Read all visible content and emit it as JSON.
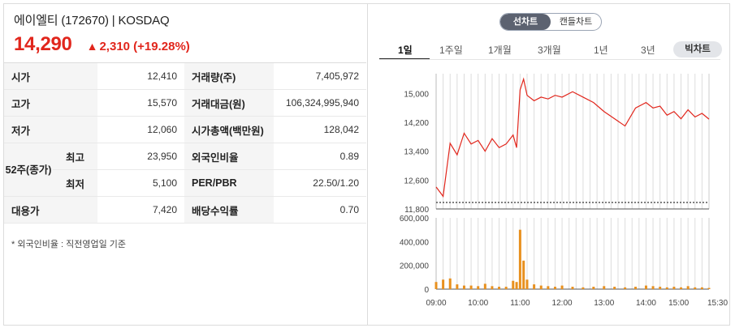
{
  "header": {
    "stock_name": "에이엘티 (172670) | KOSDAQ",
    "price": "14,290",
    "change_arrow": "▲",
    "change_text": "2,310 (+19.28%)",
    "up_color": "#e1261c"
  },
  "info": {
    "open_label": "시가",
    "open_value": "12,410",
    "volume_label": "거래량(주)",
    "volume_value": "7,405,972",
    "high_label": "고가",
    "high_value": "15,570",
    "amount_label": "거래대금(원)",
    "amount_value": "106,324,995,940",
    "low_label": "저가",
    "low_value": "12,060",
    "mcap_label": "시가총액(백만원)",
    "mcap_value": "128,042",
    "w52_label": "52주(종가)",
    "w52_high_label": "최고",
    "w52_high_value": "23,950",
    "foreign_label": "외국인비율",
    "foreign_value": "0.89",
    "w52_low_label": "최저",
    "w52_low_value": "5,100",
    "per_label": "PER/PBR",
    "per_value": "22.50/1.20",
    "substitute_label": "대용가",
    "substitute_value": "7,420",
    "dividend_label": "배당수익률",
    "dividend_value": "0.70",
    "note": "* 외국인비율 : 직전영업일 기준"
  },
  "chart_toggle": {
    "line": "선차트",
    "candle": "캔들차트",
    "active": "선차트"
  },
  "period_tabs": [
    "1일",
    "1주일",
    "1개월",
    "3개월",
    "1년",
    "3년"
  ],
  "active_tab": "1일",
  "big_chart_label": "빅차트",
  "chart_data": [
    {
      "type": "line",
      "name": "price",
      "ylim": [
        11800,
        15550
      ],
      "y_ticks": [
        "15,000",
        "14,200",
        "13,400",
        "12,600",
        "11,800"
      ],
      "y_tick_values": [
        15000,
        14200,
        13400,
        12600,
        11800
      ],
      "prev_close": 11980,
      "x": [
        "09:00",
        "09:10",
        "09:20",
        "09:30",
        "09:40",
        "09:50",
        "10:00",
        "10:10",
        "10:20",
        "10:30",
        "10:40",
        "10:50",
        "10:55",
        "11:00",
        "11:05",
        "11:10",
        "11:20",
        "11:30",
        "11:40",
        "11:50",
        "12:00",
        "12:15",
        "12:30",
        "12:45",
        "13:00",
        "13:15",
        "13:30",
        "13:45",
        "14:00",
        "14:10",
        "14:20",
        "14:30",
        "14:40",
        "14:50",
        "15:00",
        "15:10",
        "15:20",
        "15:30"
      ],
      "values": [
        12410,
        12150,
        13620,
        13300,
        13900,
        13600,
        13700,
        13400,
        13750,
        13500,
        13600,
        13850,
        13500,
        15100,
        15400,
        14950,
        14800,
        14900,
        14850,
        14950,
        14900,
        15050,
        14900,
        14750,
        14500,
        14300,
        14100,
        14600,
        14750,
        14600,
        14650,
        14400,
        14500,
        14300,
        14550,
        14350,
        14450,
        14290
      ],
      "color": "#e1261c"
    },
    {
      "type": "bar",
      "name": "volume",
      "ylim": [
        0,
        600000
      ],
      "y_ticks": [
        "600,000",
        "400,000",
        "200,000",
        "0"
      ],
      "y_tick_values": [
        600000,
        400000,
        200000,
        0
      ],
      "x_ticks": [
        "09:00",
        "10:00",
        "11:00",
        "12:00",
        "13:00",
        "14:00",
        "15:00",
        "15:30"
      ],
      "x": [
        "09:00",
        "09:10",
        "09:20",
        "09:30",
        "09:40",
        "09:50",
        "10:00",
        "10:10",
        "10:20",
        "10:30",
        "10:40",
        "10:50",
        "10:55",
        "11:00",
        "11:05",
        "11:10",
        "11:20",
        "11:30",
        "11:40",
        "11:50",
        "12:00",
        "12:15",
        "12:30",
        "12:45",
        "13:00",
        "13:15",
        "13:30",
        "13:45",
        "14:00",
        "14:10",
        "14:20",
        "14:30",
        "14:40",
        "14:50",
        "15:00",
        "15:10",
        "15:20",
        "15:30"
      ],
      "values": [
        60000,
        80000,
        90000,
        40000,
        30000,
        30000,
        25000,
        45000,
        25000,
        20000,
        20000,
        70000,
        60000,
        500000,
        240000,
        80000,
        40000,
        30000,
        25000,
        20000,
        30000,
        20000,
        15000,
        20000,
        25000,
        20000,
        15000,
        20000,
        30000,
        25000,
        20000,
        15000,
        20000,
        15000,
        25000,
        15000,
        15000,
        10000
      ],
      "color": "#e8901e"
    }
  ]
}
